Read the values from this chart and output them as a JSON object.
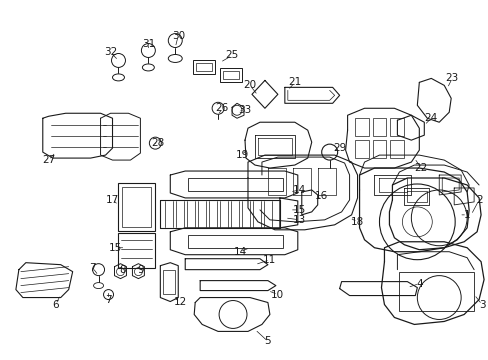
{
  "bg_color": "#ffffff",
  "line_color": "#1a1a1a",
  "text_color": "#1a1a1a",
  "figsize": [
    4.89,
    3.6
  ],
  "dpi": 100,
  "label_fontsize": 7.5,
  "lw": 0.7
}
